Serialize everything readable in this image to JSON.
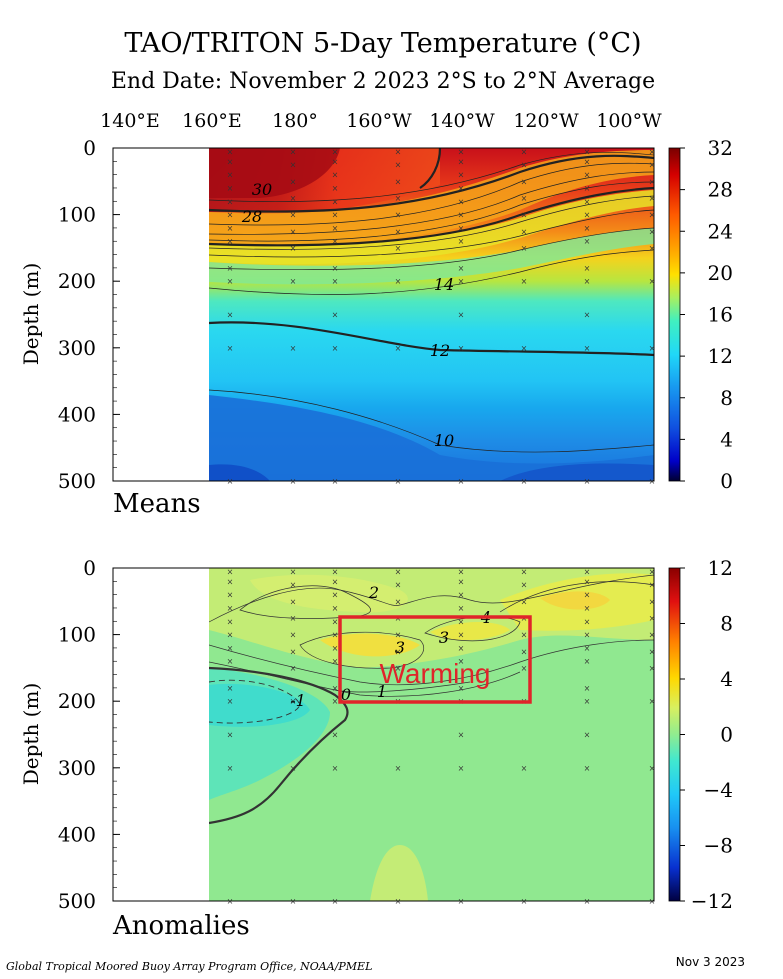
{
  "title": "TAO/TRITON 5-Day Temperature (°C)",
  "subtitle": "End Date: November 2 2023  2°S to 2°N Average",
  "longitude_labels": [
    "140°E",
    "160°E",
    "180°",
    "160°W",
    "140°W",
    "120°W",
    "100°W"
  ],
  "footer_left": "Global Tropical Moored Buoy Array Program Office, NOAA/PMEL",
  "footer_right": "Nov  3 2023",
  "chart_data": [
    {
      "type": "heatmap",
      "panel_label": "Means",
      "ylabel": "Depth (m)",
      "x_ticks": [
        "140°E",
        "160°E",
        "180°",
        "160°W",
        "140°W",
        "120°W",
        "100°W"
      ],
      "y_ticks": [
        0,
        100,
        200,
        300,
        400,
        500
      ],
      "ylim": [
        0,
        500
      ],
      "colorbar_ticks": [
        32,
        28,
        24,
        20,
        16,
        12,
        8,
        4,
        0
      ],
      "colorbar_range": [
        0,
        32
      ],
      "contour_labels": [
        "30",
        "28",
        "14",
        "12",
        "10"
      ],
      "approx_values": {
        "surface_west": 30,
        "surface_east": 27,
        "depth_200m": 15,
        "depth_300m": 12,
        "depth_450m": 10
      }
    },
    {
      "type": "heatmap",
      "panel_label": "Anomalies",
      "ylabel": "Depth (m)",
      "x_ticks": [
        "140°E",
        "160°E",
        "180°",
        "160°W",
        "140°W",
        "120°W",
        "100°W"
      ],
      "y_ticks": [
        0,
        100,
        200,
        300,
        400,
        500
      ],
      "ylim": [
        0,
        500
      ],
      "colorbar_ticks": [
        12,
        8,
        4,
        0,
        -4,
        -8,
        -12
      ],
      "colorbar_range": [
        -12,
        12
      ],
      "contour_labels": [
        "2",
        "3",
        "3",
        "4",
        "1",
        "0",
        "-1"
      ],
      "annotation": {
        "text": "Warming",
        "color": "#e0242a"
      }
    }
  ]
}
